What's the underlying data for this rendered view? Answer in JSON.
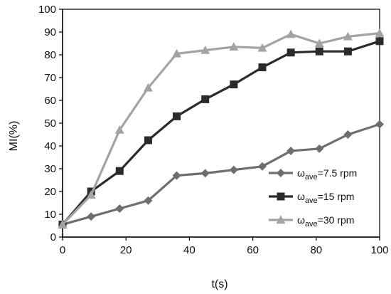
{
  "chart_data": {
    "type": "line",
    "xlabel": "t(s)",
    "ylabel": "MI(%)",
    "xlim": [
      0,
      100
    ],
    "ylim": [
      0,
      100
    ],
    "x_ticks": [
      0,
      20,
      40,
      60,
      80,
      100
    ],
    "y_ticks": [
      0,
      10,
      20,
      30,
      40,
      50,
      60,
      70,
      80,
      90,
      100
    ],
    "grid": false,
    "legend_position": "bottom-right",
    "series": [
      {
        "name": "ωave=7.5 rpm",
        "name_symbol": "ω",
        "name_subscript": "ave",
        "name_rest": "=7.5 rpm",
        "marker": "diamond",
        "color": "#6e6e6e",
        "x": [
          0,
          9,
          18,
          27,
          36,
          45,
          54,
          63,
          72,
          81,
          90,
          100
        ],
        "y": [
          5.5,
          9,
          12.5,
          16,
          27,
          28,
          29.5,
          31,
          37.8,
          38.8,
          45,
          49.5
        ]
      },
      {
        "name": "ωave=15 rpm",
        "name_symbol": "ω",
        "name_subscript": "ave",
        "name_rest": "=15 rpm",
        "marker": "square",
        "color": "#2b2b2b",
        "x": [
          0,
          9,
          18,
          27,
          36,
          45,
          54,
          63,
          72,
          81,
          90,
          100
        ],
        "y": [
          5.5,
          20,
          29,
          42.5,
          53,
          60.5,
          67,
          74.5,
          81,
          81.5,
          81.5,
          86
        ]
      },
      {
        "name": "ωave=30 rpm",
        "name_symbol": "ω",
        "name_subscript": "ave",
        "name_rest": "=30 rpm",
        "marker": "triangle",
        "color": "#a3a3a3",
        "x": [
          0,
          9,
          18,
          27,
          36,
          45,
          54,
          63,
          72,
          81,
          90,
          100
        ],
        "y": [
          5.5,
          18.5,
          47,
          65.5,
          80.5,
          82,
          83.5,
          83,
          89,
          85,
          88,
          89.5
        ]
      }
    ]
  }
}
